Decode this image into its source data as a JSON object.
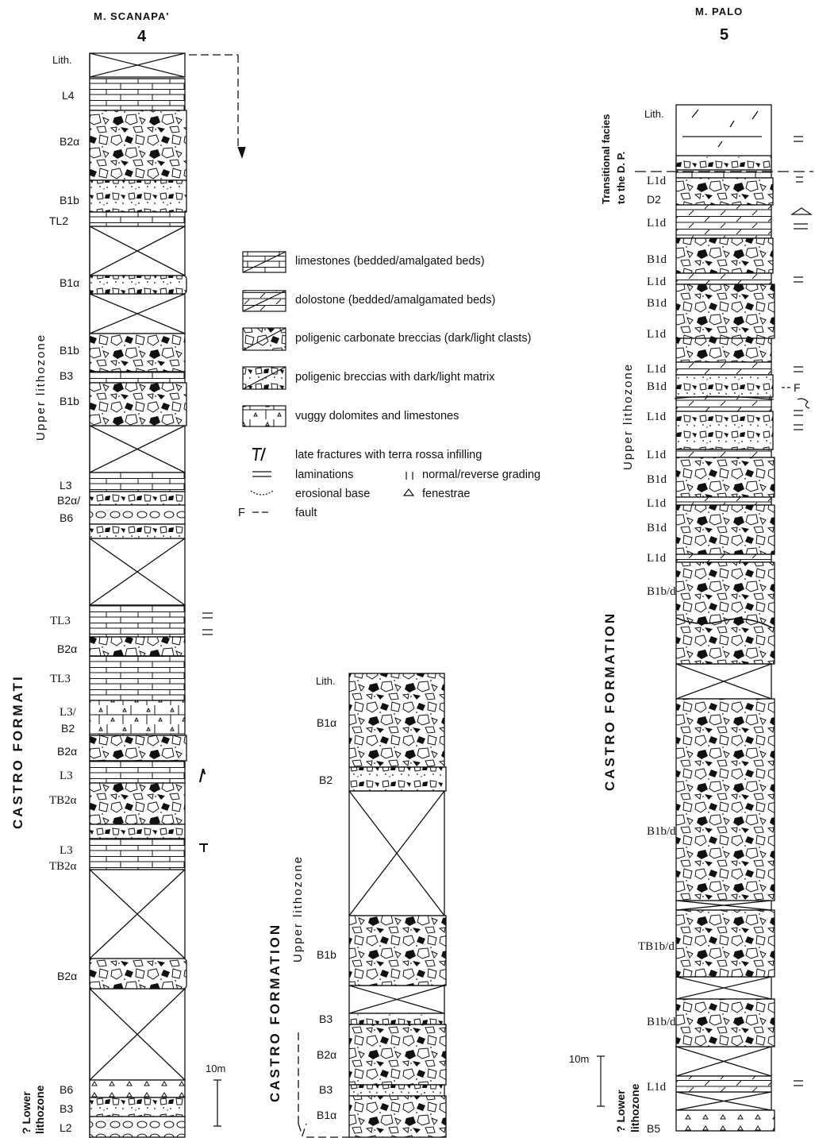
{
  "sections": {
    "s4": {
      "name": "M. SCANAPA'",
      "number": "4",
      "units": {
        "lith": "Lith.",
        "l4": "L4",
        "b2a_1": "B2α",
        "b1b_1": "B1b",
        "tl2": "TL2",
        "b1a": "B1α",
        "b1b_2": "B1b",
        "b3": "B3",
        "b1b_3": "B1b",
        "l3_1": "L3",
        "b2a_2": "B2α/",
        "b6": "B6",
        "tl3_1": "TL3",
        "b2a_3": "B2α",
        "tl3_2": "TL3",
        "l3b2_1": "L3/",
        "l3b2_2": "B2",
        "b2a_4": "B2α",
        "l3_2": "L3",
        "tb2a_1": "TB2α",
        "l3_3": "L3",
        "tb2a_2": "TB2α",
        "b2a_5": "B2α",
        "b6_2": "B6",
        "b3_2": "B3",
        "l2": "L2"
      },
      "formation": "CASTRO   FORMATI",
      "upper_zone": "Upper lithozone",
      "lower_zone_1": "? Lower",
      "lower_zone_2": "lithozone",
      "scale": "10m"
    },
    "s_mid": {
      "units": {
        "lith": "Lith.",
        "b1a": "B1α",
        "b2": "B2",
        "b1b": "B1b",
        "b3_1": "B3",
        "b2a": "B2α",
        "b3_2": "B3",
        "b1a_2": "B1α"
      },
      "formation": "CASTRO    FORMATION",
      "upper_zone": "Upper lithozone"
    },
    "s5": {
      "name": "M. PALO",
      "number": "5",
      "transitional_1": "Transitional facies",
      "transitional_2": "to the D. P.",
      "units": {
        "lith": "Lith.",
        "l1d_1": "L1d",
        "d2": "D2",
        "l1d_2": "L1d",
        "b1d_1": "B1d",
        "l1d_3": "L1d",
        "b1d_2": "B1d",
        "l1d_4": "L1d",
        "l1d_5": "L1d",
        "b1d_3": "B1d",
        "l1d_6": "L1d",
        "l1d_7": "L1d",
        "b1d_4": "B1d",
        "l1d_8": "L1d",
        "b1d_5": "B1d",
        "l1d_9": "L1d",
        "b1bd_1": "B1b/d",
        "b1bd_2": "B1b/d",
        "tb1bd": "TB1b/d",
        "b1bd_3": "B1b/d",
        "l1d_10": "L1d",
        "b5": "B5"
      },
      "formation": "CASTRO   FORMATION",
      "upper_zone": "Upper lithozone",
      "lower_zone_1": "? Lower",
      "lower_zone_2": "lithozone",
      "scale": "10m",
      "fault_label": "F"
    }
  },
  "legend": {
    "limestones": "limestones (bedded/amalgated beds)",
    "dolostone": "dolostone (bedded/amalgamated beds)",
    "breccias": "poligenic carbonate breccias (dark/light clasts)",
    "breccias_matrix": "poligenic breccias with dark/light matrix",
    "vuggy": "vuggy dolomites and limestones",
    "fractures": "late fractures with terra rossa infilling",
    "laminations": "laminations",
    "grading": "normal/reverse grading",
    "erosional": "erosional base",
    "fenestrae": "fenestrae",
    "fault_letter": "F",
    "fault": "fault"
  }
}
